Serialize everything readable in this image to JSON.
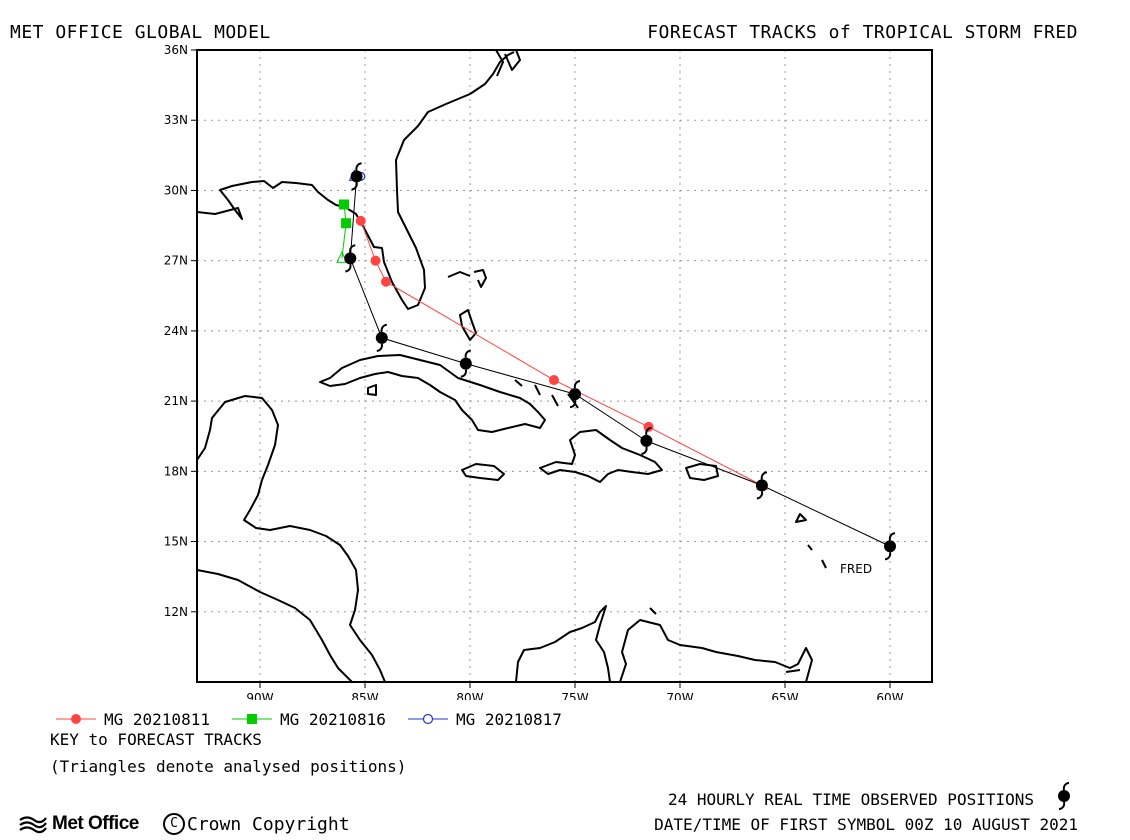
{
  "header": {
    "left": "MET OFFICE GLOBAL MODEL",
    "right": "FORECAST TRACKS of TROPICAL STORM FRED"
  },
  "map": {
    "lon_range": [
      -93,
      -58
    ],
    "lat_range": [
      9,
      36
    ],
    "x_ticks": [
      "90W",
      "85W",
      "80W",
      "75W",
      "70W",
      "65W",
      "60W"
    ],
    "x_tick_values": [
      -90,
      -85,
      -80,
      -75,
      -70,
      -65,
      -60
    ],
    "y_ticks": [
      "36N",
      "33N",
      "30N",
      "27N",
      "24N",
      "21N",
      "18N",
      "15N",
      "12N"
    ],
    "y_tick_values": [
      36,
      33,
      30,
      27,
      24,
      21,
      18,
      15,
      12
    ],
    "grid": true,
    "storm_label": "FRED"
  },
  "tracks": {
    "observed": {
      "color": "#000000",
      "points": [
        [
          -60.0,
          14.8
        ],
        [
          -66.1,
          17.4
        ],
        [
          -71.6,
          19.3
        ],
        [
          -75.0,
          21.3
        ],
        [
          -80.2,
          22.6
        ],
        [
          -84.2,
          23.7
        ],
        [
          -85.7,
          27.1
        ],
        [
          -85.4,
          30.6
        ]
      ]
    },
    "forecasts": [
      {
        "name": "MG 20210811",
        "color": "#ff4444",
        "marker": "circle",
        "points": [
          [
            -66.1,
            17.4
          ],
          [
            -71.5,
            19.9
          ],
          [
            -76.0,
            21.9
          ],
          [
            -84.0,
            26.1
          ],
          [
            -84.5,
            27.0
          ],
          [
            -85.2,
            28.7
          ]
        ]
      },
      {
        "name": "MG 20210816",
        "color": "#00cc00",
        "marker": "square",
        "points": [
          [
            -86.1,
            27.1
          ],
          [
            -85.9,
            28.6
          ],
          [
            -86.0,
            29.4
          ]
        ]
      },
      {
        "name": "MG 20210817",
        "color": "#2233cc",
        "marker": "open-circle",
        "points": [
          [
            -85.5,
            30.6
          ],
          [
            -85.2,
            30.6
          ]
        ]
      }
    ]
  },
  "legend": {
    "title": "KEY to FORECAST TRACKS",
    "note": "(Triangles denote analysed positions)"
  },
  "footer": {
    "observed": "24 HOURLY REAL TIME OBSERVED POSITIONS",
    "first_symbol": "DATE/TIME OF FIRST SYMBOL 00Z 10 AUGUST 2021",
    "logo": "Met Office",
    "copyright": "Crown Copyright"
  }
}
